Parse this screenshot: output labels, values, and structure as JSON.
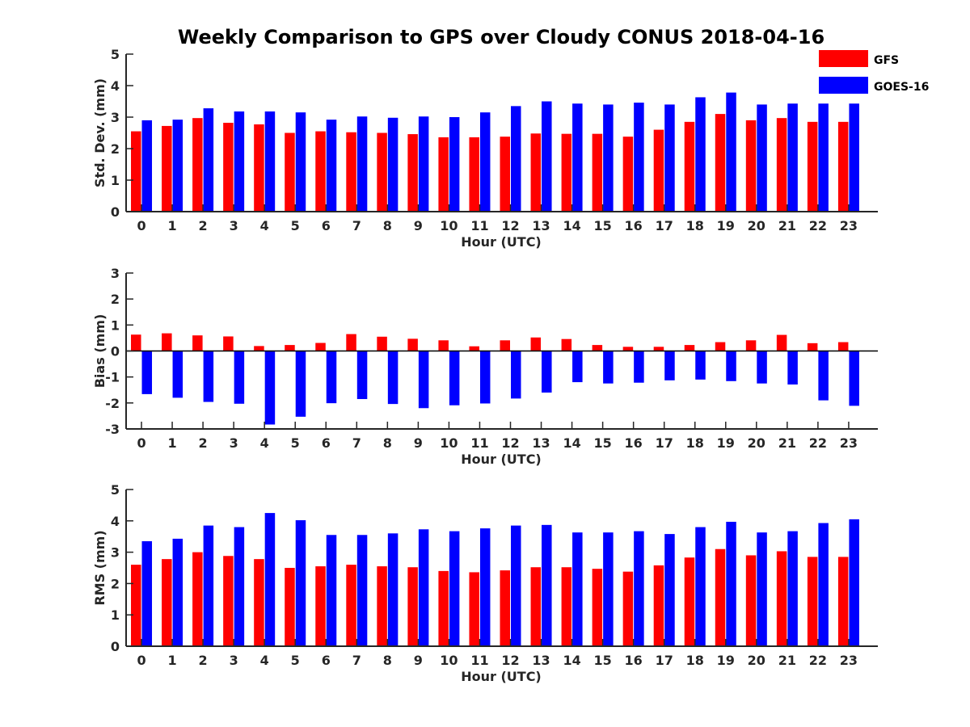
{
  "title": "Weekly Comparison to GPS over Cloudy CONUS 2018-04-16",
  "colors": {
    "GFS": "#ff0000",
    "GOES-16": "#0000ff",
    "axis": "#262626"
  },
  "legend": [
    {
      "name": "GFS",
      "color": "#ff0000"
    },
    {
      "name": "GOES-16",
      "color": "#0000ff"
    }
  ],
  "chart_data": [
    {
      "type": "bar",
      "xlabel": "Hour (UTC)",
      "ylabel": "Std. Dev. (mm)",
      "ylim": [
        0,
        5
      ],
      "yticks": [
        0,
        1,
        2,
        3,
        4,
        5
      ],
      "categories": [
        "0",
        "1",
        "2",
        "3",
        "4",
        "5",
        "6",
        "7",
        "8",
        "9",
        "10",
        "11",
        "12",
        "13",
        "14",
        "15",
        "16",
        "17",
        "18",
        "19",
        "20",
        "21",
        "22",
        "23"
      ],
      "series": [
        {
          "name": "GFS",
          "values": [
            2.55,
            2.72,
            2.97,
            2.82,
            2.77,
            2.5,
            2.55,
            2.52,
            2.5,
            2.46,
            2.36,
            2.36,
            2.38,
            2.48,
            2.47,
            2.47,
            2.38,
            2.6,
            2.85,
            3.1,
            2.9,
            2.97,
            2.85,
            2.85
          ]
        },
        {
          "name": "GOES-16",
          "values": [
            2.9,
            2.92,
            3.28,
            3.18,
            3.18,
            3.15,
            2.92,
            3.02,
            2.98,
            3.02,
            3.0,
            3.15,
            3.35,
            3.5,
            3.43,
            3.4,
            3.46,
            3.4,
            3.63,
            3.78,
            3.4,
            3.43,
            3.43,
            3.43
          ]
        }
      ]
    },
    {
      "type": "bar",
      "xlabel": "Hour (UTC)",
      "ylabel": "Bias (mm)",
      "ylim": [
        -3,
        3
      ],
      "yticks": [
        -3,
        -2,
        -1,
        0,
        1,
        2,
        3
      ],
      "categories": [
        "0",
        "1",
        "2",
        "3",
        "4",
        "5",
        "6",
        "7",
        "8",
        "9",
        "10",
        "11",
        "12",
        "13",
        "14",
        "15",
        "16",
        "17",
        "18",
        "19",
        "20",
        "21",
        "22",
        "23"
      ],
      "series": [
        {
          "name": "GFS",
          "values": [
            0.63,
            0.68,
            0.6,
            0.56,
            0.19,
            0.23,
            0.31,
            0.65,
            0.55,
            0.47,
            0.41,
            0.18,
            0.41,
            0.52,
            0.46,
            0.23,
            0.16,
            0.16,
            0.23,
            0.34,
            0.41,
            0.62,
            0.3,
            0.34
          ]
        },
        {
          "name": "GOES-16",
          "values": [
            -1.66,
            -1.8,
            -1.96,
            -2.03,
            -2.83,
            -2.53,
            -2.01,
            -1.85,
            -2.04,
            -2.2,
            -2.09,
            -2.02,
            -1.83,
            -1.6,
            -1.2,
            -1.25,
            -1.22,
            -1.13,
            -1.1,
            -1.16,
            -1.25,
            -1.29,
            -1.9,
            -2.11
          ]
        }
      ]
    },
    {
      "type": "bar",
      "xlabel": "Hour (UTC)",
      "ylabel": "RMS (mm)",
      "ylim": [
        0,
        5
      ],
      "yticks": [
        0,
        1,
        2,
        3,
        4,
        5
      ],
      "categories": [
        "0",
        "1",
        "2",
        "3",
        "4",
        "5",
        "6",
        "7",
        "8",
        "9",
        "10",
        "11",
        "12",
        "13",
        "14",
        "15",
        "16",
        "17",
        "18",
        "19",
        "20",
        "21",
        "22",
        "23"
      ],
      "series": [
        {
          "name": "GFS",
          "values": [
            2.6,
            2.78,
            3.0,
            2.88,
            2.78,
            2.5,
            2.55,
            2.6,
            2.55,
            2.52,
            2.4,
            2.36,
            2.42,
            2.52,
            2.52,
            2.47,
            2.38,
            2.58,
            2.83,
            3.1,
            2.9,
            3.03,
            2.85,
            2.85
          ]
        },
        {
          "name": "GOES-16",
          "values": [
            3.35,
            3.43,
            3.85,
            3.8,
            4.25,
            4.02,
            3.55,
            3.55,
            3.6,
            3.73,
            3.67,
            3.76,
            3.85,
            3.87,
            3.63,
            3.63,
            3.67,
            3.58,
            3.8,
            3.97,
            3.63,
            3.67,
            3.93,
            4.05
          ]
        }
      ]
    }
  ]
}
